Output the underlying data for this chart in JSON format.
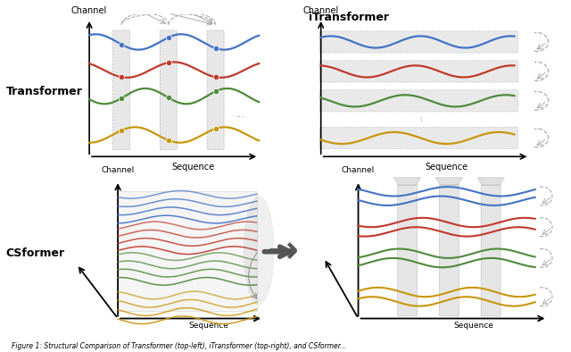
{
  "colors": {
    "blue": "#4472C4",
    "red": "#C0392B",
    "green": "#4E8A3A",
    "yellow": "#C8960C",
    "gray": "#AAAAAA",
    "light_gray": "#D8D8D8",
    "dark_gray": "#555555",
    "background": "#FFFFFF"
  },
  "panel_labels": {
    "transformer": "Transformer",
    "itransformer": "iTransformer",
    "csformer": "CSformer"
  },
  "axis_labels": {
    "channel": "Channel",
    "sequence": "Sequence"
  },
  "caption": "Figure 1: Structural Comparison of Transformer (top-left), iTransformer (top-right), and CSformer..."
}
